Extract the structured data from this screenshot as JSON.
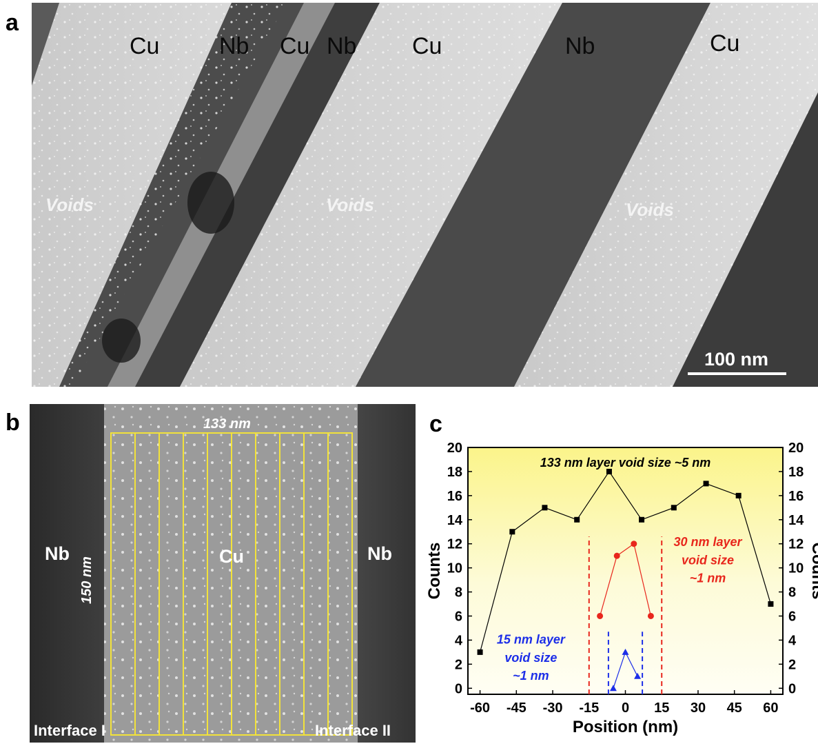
{
  "panel_a": {
    "letter": "a",
    "layer_labels": [
      "Cu",
      "Nb",
      "Cu",
      "Nb",
      "Cu",
      "Nb",
      "Cu"
    ],
    "void_labels": [
      "Voids",
      "Voids",
      "Voids"
    ],
    "scale_bar": "100 nm"
  },
  "panel_b": {
    "letter": "b",
    "left_label": "Nb",
    "center_label": "Cu",
    "right_label": "Nb",
    "width_label": "133 nm",
    "height_label": "150 nm",
    "interface_left": "Interface I",
    "interface_right": "Interface II",
    "box_color": "#f2e23a"
  },
  "panel_c": {
    "letter": "c"
  },
  "chart_data": {
    "type": "line",
    "xlabel": "Position (nm)",
    "ylabel": "Counts",
    "ylabel_right": "Counts",
    "xlim": [
      -65,
      65
    ],
    "ylim": [
      -0.5,
      20
    ],
    "xticks": [
      -60,
      -45,
      -30,
      -15,
      0,
      15,
      30,
      45,
      60
    ],
    "yticks": [
      0,
      2,
      4,
      6,
      8,
      10,
      12,
      14,
      16,
      18,
      20
    ],
    "grid": false,
    "background": "yellow-to-white gradient",
    "series": [
      {
        "color": "#000000",
        "marker": "square",
        "x": [
          -60,
          -46.7,
          -33.3,
          -20,
          -6.7,
          6.7,
          20,
          33.3,
          46.7,
          60
        ],
        "y": [
          3,
          13,
          15,
          14,
          18,
          14,
          15,
          17,
          16,
          7
        ]
      },
      {
        "color": "#e8261c",
        "marker": "circle",
        "x": [
          -10.5,
          -3.5,
          3.5,
          10.5
        ],
        "y": [
          6,
          11,
          12,
          6
        ]
      },
      {
        "color": "#1c2ee8",
        "marker": "triangle",
        "x": [
          -5,
          0,
          5
        ],
        "y": [
          0,
          3,
          1
        ]
      }
    ],
    "vlines": [
      {
        "x": -15,
        "color": "#e8261c",
        "ymax": 12.6
      },
      {
        "x": 15,
        "color": "#e8261c",
        "ymax": 12.6
      },
      {
        "x": -7,
        "color": "#1c2ee8",
        "ymax": 4.7
      },
      {
        "x": 7,
        "color": "#1c2ee8",
        "ymax": 4.7
      }
    ],
    "annotations": [
      {
        "text": "133 nm layer void size ~5 nm",
        "color": "#000000"
      },
      {
        "text": "30 nm layer",
        "color": "#e8261c"
      },
      {
        "text": "void size",
        "color": "#e8261c"
      },
      {
        "text": "~1 nm",
        "color": "#e8261c"
      },
      {
        "text": "15 nm layer",
        "color": "#1c2ee8"
      },
      {
        "text": "void size",
        "color": "#1c2ee8"
      },
      {
        "text": "~1 nm",
        "color": "#1c2ee8"
      }
    ]
  }
}
